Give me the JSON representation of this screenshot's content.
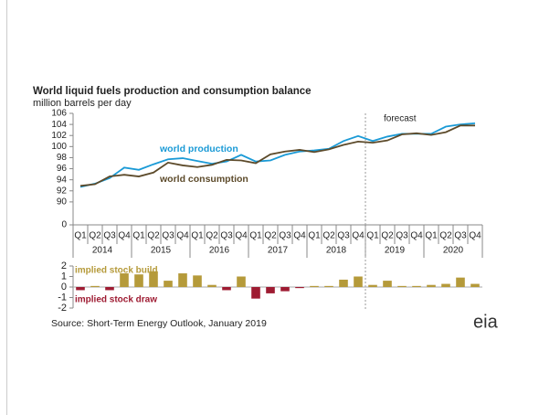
{
  "chart_data": {
    "type": "line",
    "title": "World liquid fuels production and consumption balance",
    "subtitle": "million barrels per day",
    "categories": [
      "Q1",
      "Q2",
      "Q3",
      "Q4",
      "Q1",
      "Q2",
      "Q3",
      "Q4",
      "Q1",
      "Q2",
      "Q3",
      "Q4",
      "Q1",
      "Q2",
      "Q3",
      "Q4",
      "Q1",
      "Q2",
      "Q3",
      "Q4",
      "Q1",
      "Q2",
      "Q3",
      "Q4",
      "Q1",
      "Q2",
      "Q3",
      "Q4"
    ],
    "years": [
      "2014",
      "2015",
      "2016",
      "2017",
      "2018",
      "2019",
      "2020"
    ],
    "series": [
      {
        "name": "world production",
        "color": "#1a9ad6",
        "values": [
          92.7,
          93.3,
          94.3,
          96.2,
          95.8,
          96.8,
          97.7,
          97.9,
          97.4,
          96.9,
          97.3,
          98.5,
          97.3,
          97.5,
          98.5,
          99.1,
          99.3,
          99.6,
          101.0,
          101.9,
          101.0,
          101.8,
          102.3,
          102.3,
          102.3,
          103.6,
          104.0,
          104.2
        ]
      },
      {
        "name": "world consumption",
        "color": "#5c4a2a",
        "values": [
          92.9,
          93.2,
          94.6,
          94.9,
          94.6,
          95.3,
          97.1,
          96.6,
          96.3,
          96.7,
          97.6,
          97.5,
          97.0,
          98.6,
          99.1,
          99.4,
          99.0,
          99.5,
          100.3,
          100.9,
          100.7,
          101.1,
          102.2,
          102.4,
          102.1,
          102.6,
          103.8,
          103.8
        ]
      }
    ],
    "ylim": [
      88,
      106
    ],
    "yticks": [
      90,
      92,
      94,
      96,
      98,
      100,
      102,
      104,
      106
    ],
    "axis_break_tick": 0,
    "forecast_label": "forecast",
    "stock": {
      "type": "bar",
      "build_label": "implied stock  build",
      "draw_label": "implied stock draw",
      "positive_color": "#b59a3a",
      "negative_color": "#9e1b32",
      "values": [
        -0.3,
        0.1,
        -0.3,
        1.3,
        1.2,
        1.5,
        0.6,
        1.3,
        1.1,
        0.2,
        -0.3,
        1.0,
        -1.1,
        -0.6,
        -0.4,
        -0.1,
        0.1,
        0.1,
        0.7,
        1.0,
        0.2,
        0.6,
        0.1,
        0.1,
        0.2,
        0.3,
        0.9,
        0.3
      ],
      "ylim": [
        -2,
        2
      ],
      "yticks": [
        -2,
        -1,
        0,
        1,
        2
      ]
    },
    "source": "Source: Short-Term Energy Outlook, January 2019",
    "logo": "eia"
  }
}
